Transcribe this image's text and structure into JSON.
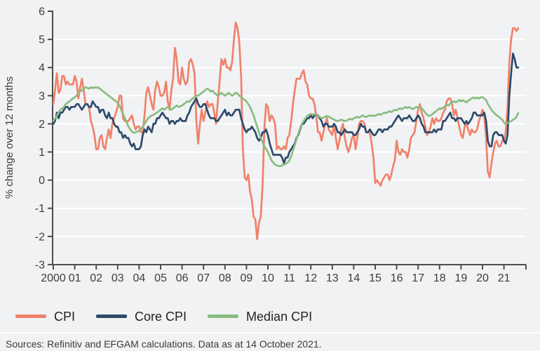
{
  "colors": {
    "background": "#F1F2F4",
    "gridline": "#FFFFFF",
    "axis": "#4D4D4D",
    "text": "#3C3C3C",
    "legend_text": "#222222",
    "source_text": "#3A3A3A",
    "cpi": "#F0826A",
    "core_cpi": "#2E4B6B",
    "median_cpi": "#89BD80"
  },
  "footer": {
    "sources": "Sources: Refinitiv and EFGAM calculations. Data as at 14 October 2021."
  },
  "chart_data": {
    "type": "line",
    "title": "",
    "xlabel": "",
    "ylabel": "% change over 12 months",
    "ylim": [
      -3,
      6
    ],
    "ytick_step": 1,
    "grid": "horizontal",
    "legend_position": "bottom-left",
    "x_frequency": "monthly",
    "x_first": "2000-01",
    "x_last": "2021-09",
    "x_tick_labels": [
      "2000",
      "01",
      "02",
      "03",
      "04",
      "05",
      "06",
      "07",
      "08",
      "09",
      "10",
      "11",
      "12",
      "13",
      "14",
      "15",
      "16",
      "17",
      "18",
      "19",
      "20",
      "21"
    ],
    "series": [
      {
        "id": "cpi",
        "name": "CPI",
        "color": "#F0826A",
        "values": [
          2.7,
          3.2,
          3.8,
          3.1,
          3.2,
          3.7,
          3.7,
          3.4,
          3.5,
          3.4,
          3.4,
          3.4,
          3.7,
          3.5,
          2.9,
          3.3,
          3.6,
          3.2,
          2.7,
          2.7,
          2.6,
          2.1,
          1.9,
          1.6,
          1.1,
          1.1,
          1.5,
          1.6,
          1.2,
          1.1,
          1.5,
          1.8,
          1.5,
          2.0,
          2.2,
          2.4,
          2.6,
          3.0,
          3.0,
          2.2,
          2.1,
          2.1,
          2.1,
          2.2,
          2.3,
          2.0,
          1.8,
          1.9,
          1.9,
          1.7,
          1.7,
          2.3,
          3.1,
          3.3,
          3.0,
          2.7,
          2.5,
          3.2,
          3.5,
          3.3,
          3.0,
          3.0,
          3.1,
          3.5,
          2.8,
          2.5,
          3.2,
          3.6,
          4.7,
          4.3,
          3.5,
          3.4,
          4.0,
          3.6,
          3.4,
          3.5,
          4.2,
          4.3,
          4.1,
          3.8,
          2.1,
          1.3,
          2.0,
          2.5,
          2.1,
          2.4,
          2.8,
          2.6,
          2.7,
          2.7,
          2.4,
          2.0,
          2.8,
          3.5,
          4.3,
          4.1,
          4.3,
          4.0,
          4.0,
          3.9,
          4.2,
          5.0,
          5.6,
          5.4,
          4.9,
          3.7,
          1.1,
          0.1,
          0.0,
          0.2,
          -0.4,
          -0.7,
          -1.3,
          -1.4,
          -2.1,
          -1.5,
          -1.3,
          -0.2,
          1.8,
          2.7,
          2.6,
          2.1,
          2.3,
          2.2,
          2.0,
          1.1,
          1.2,
          1.1,
          1.1,
          1.2,
          1.1,
          1.5,
          1.6,
          2.1,
          2.7,
          3.2,
          3.6,
          3.6,
          3.6,
          3.8,
          3.9,
          3.5,
          3.4,
          3.0,
          2.9,
          2.9,
          2.7,
          2.3,
          1.7,
          1.7,
          1.4,
          1.7,
          2.0,
          2.2,
          1.8,
          1.7,
          1.6,
          2.0,
          1.5,
          1.1,
          1.4,
          1.8,
          2.0,
          1.5,
          1.2,
          1.0,
          1.2,
          1.5,
          1.6,
          1.1,
          1.5,
          2.0,
          2.1,
          2.1,
          2.0,
          1.7,
          1.7,
          1.7,
          1.3,
          0.8,
          -0.1,
          0.0,
          -0.1,
          -0.2,
          0.0,
          0.1,
          0.2,
          0.2,
          0.0,
          0.2,
          0.5,
          0.7,
          1.4,
          1.0,
          0.9,
          1.1,
          1.0,
          1.0,
          0.8,
          1.1,
          1.5,
          1.6,
          1.7,
          2.1,
          2.5,
          2.7,
          2.4,
          2.2,
          1.9,
          1.6,
          1.7,
          1.9,
          2.2,
          2.0,
          2.2,
          2.1,
          2.1,
          2.2,
          2.4,
          2.5,
          2.8,
          2.9,
          2.9,
          2.7,
          2.3,
          2.5,
          2.2,
          1.9,
          1.6,
          1.5,
          1.9,
          2.0,
          1.8,
          1.6,
          1.8,
          1.7,
          1.7,
          1.8,
          2.1,
          2.3,
          2.5,
          2.3,
          1.5,
          0.3,
          0.1,
          0.6,
          1.0,
          1.3,
          1.4,
          1.2,
          1.2,
          1.4,
          1.4,
          1.7,
          2.6,
          4.2,
          5.0,
          5.4,
          5.4,
          5.3,
          5.4
        ]
      },
      {
        "id": "core-cpi",
        "name": "Core CPI",
        "color": "#2E4B6B",
        "values": [
          2.0,
          2.1,
          2.4,
          2.2,
          2.4,
          2.4,
          2.5,
          2.6,
          2.6,
          2.5,
          2.6,
          2.6,
          2.6,
          2.7,
          2.7,
          2.6,
          2.5,
          2.6,
          2.7,
          2.7,
          2.6,
          2.6,
          2.8,
          2.7,
          2.6,
          2.6,
          2.4,
          2.5,
          2.5,
          2.3,
          2.2,
          2.4,
          2.2,
          2.2,
          2.0,
          1.9,
          1.9,
          1.7,
          1.7,
          1.5,
          1.6,
          1.5,
          1.5,
          1.3,
          1.2,
          1.3,
          1.1,
          1.1,
          1.1,
          1.2,
          1.6,
          1.8,
          1.7,
          1.9,
          1.8,
          1.7,
          2.0,
          2.0,
          2.2,
          2.2,
          2.3,
          2.4,
          2.3,
          2.2,
          2.2,
          2.0,
          2.1,
          2.1,
          2.0,
          2.1,
          2.1,
          2.2,
          2.1,
          2.1,
          2.1,
          2.3,
          2.4,
          2.6,
          2.7,
          2.8,
          2.9,
          2.7,
          2.6,
          2.6,
          2.7,
          2.7,
          2.5,
          2.3,
          2.2,
          2.2,
          2.2,
          2.1,
          2.1,
          2.2,
          2.3,
          2.4,
          2.5,
          2.3,
          2.4,
          2.3,
          2.3,
          2.4,
          2.5,
          2.5,
          2.5,
          2.2,
          2.0,
          1.8,
          1.7,
          1.8,
          1.8,
          1.9,
          1.8,
          1.7,
          1.5,
          1.4,
          1.5,
          1.7,
          1.7,
          1.8,
          1.6,
          1.3,
          1.1,
          0.9,
          0.9,
          0.9,
          0.9,
          0.9,
          0.8,
          0.6,
          0.8,
          0.8,
          1.0,
          1.1,
          1.2,
          1.3,
          1.5,
          1.6,
          1.8,
          2.0,
          2.0,
          2.1,
          2.2,
          2.2,
          2.3,
          2.2,
          2.3,
          2.3,
          2.3,
          2.2,
          2.1,
          1.9,
          2.0,
          2.0,
          1.9,
          1.9,
          1.9,
          2.0,
          1.9,
          1.7,
          1.7,
          1.6,
          1.7,
          1.8,
          1.7,
          1.7,
          1.7,
          1.7,
          1.6,
          1.6,
          1.7,
          1.8,
          2.0,
          1.9,
          1.9,
          1.7,
          1.7,
          1.8,
          1.7,
          1.6,
          1.6,
          1.7,
          1.8,
          1.8,
          1.7,
          1.8,
          1.8,
          1.8,
          1.9,
          1.9,
          2.0,
          2.1,
          2.2,
          2.3,
          2.2,
          2.1,
          2.2,
          2.2,
          2.2,
          2.3,
          2.2,
          2.1,
          2.1,
          2.2,
          2.3,
          2.2,
          2.0,
          1.9,
          1.7,
          1.7,
          1.7,
          1.7,
          1.7,
          1.8,
          1.7,
          1.8,
          1.8,
          1.8,
          2.1,
          2.1,
          2.2,
          2.3,
          2.4,
          2.2,
          2.2,
          2.1,
          2.2,
          2.2,
          2.2,
          2.1,
          2.0,
          2.1,
          2.0,
          2.1,
          2.2,
          2.4,
          2.4,
          2.3,
          2.3,
          2.3,
          2.3,
          2.4,
          2.1,
          1.4,
          1.2,
          1.2,
          1.6,
          1.7,
          1.7,
          1.6,
          1.6,
          1.6,
          1.4,
          1.3,
          1.6,
          3.0,
          3.8,
          4.5,
          4.3,
          4.0,
          4.0
        ]
      },
      {
        "id": "median-cpi",
        "name": "Median CPI",
        "color": "#89BD80",
        "values": [
          2.1,
          2.2,
          2.3,
          2.4,
          2.5,
          2.55,
          2.6,
          2.7,
          2.75,
          2.8,
          2.85,
          2.9,
          2.95,
          3.0,
          3.1,
          3.15,
          3.2,
          3.25,
          3.3,
          3.28,
          3.25,
          3.3,
          3.27,
          3.3,
          3.28,
          3.3,
          3.25,
          3.2,
          3.15,
          3.1,
          3.05,
          3.0,
          2.95,
          2.9,
          2.85,
          2.8,
          2.75,
          2.65,
          2.5,
          2.35,
          2.2,
          2.05,
          1.9,
          1.8,
          1.72,
          1.68,
          1.7,
          1.72,
          1.75,
          1.82,
          1.9,
          2.0,
          2.1,
          2.2,
          2.25,
          2.3,
          2.32,
          2.36,
          2.4,
          2.45,
          2.5,
          2.55,
          2.5,
          2.55,
          2.6,
          2.55,
          2.5,
          2.55,
          2.6,
          2.65,
          2.6,
          2.62,
          2.65,
          2.7,
          2.75,
          2.8,
          2.78,
          2.85,
          2.9,
          2.95,
          3.0,
          3.0,
          3.05,
          3.1,
          3.15,
          3.2,
          3.25,
          3.22,
          3.15,
          3.18,
          3.1,
          3.05,
          3.0,
          3.05,
          3.1,
          3.05,
          3.0,
          3.05,
          3.1,
          3.05,
          3.0,
          3.05,
          3.1,
          3.08,
          3.0,
          2.95,
          2.9,
          2.85,
          2.8,
          2.7,
          2.6,
          2.45,
          2.3,
          2.1,
          1.9,
          1.7,
          1.5,
          1.35,
          1.2,
          1.1,
          1.0,
          0.85,
          0.7,
          0.62,
          0.55,
          0.52,
          0.5,
          0.5,
          0.52,
          0.55,
          0.58,
          0.62,
          0.7,
          0.85,
          1.05,
          1.25,
          1.45,
          1.65,
          1.85,
          2.0,
          2.1,
          2.2,
          2.28,
          2.32,
          2.35,
          2.32,
          2.35,
          2.3,
          2.28,
          2.25,
          2.2,
          2.22,
          2.25,
          2.28,
          2.25,
          2.22,
          2.18,
          2.15,
          2.12,
          2.1,
          2.12,
          2.15,
          2.12,
          2.1,
          2.12,
          2.15,
          2.18,
          2.15,
          2.2,
          2.22,
          2.25,
          2.22,
          2.26,
          2.3,
          2.26,
          2.24,
          2.28,
          2.3,
          2.28,
          2.3,
          2.28,
          2.32,
          2.35,
          2.32,
          2.36,
          2.4,
          2.38,
          2.42,
          2.45,
          2.42,
          2.46,
          2.5,
          2.48,
          2.52,
          2.55,
          2.52,
          2.56,
          2.6,
          2.56,
          2.6,
          2.55,
          2.52,
          2.56,
          2.6,
          2.58,
          2.6,
          2.55,
          2.48,
          2.4,
          2.32,
          2.28,
          2.3,
          2.35,
          2.4,
          2.45,
          2.5,
          2.55,
          2.52,
          2.58,
          2.62,
          2.68,
          2.65,
          2.72,
          2.76,
          2.8,
          2.76,
          2.8,
          2.85,
          2.8,
          2.84,
          2.8,
          2.76,
          2.82,
          2.86,
          2.9,
          2.94,
          2.9,
          2.94,
          2.9,
          2.94,
          2.95,
          2.9,
          2.85,
          2.7,
          2.6,
          2.5,
          2.42,
          2.36,
          2.3,
          2.26,
          2.2,
          2.15,
          2.05,
          2.0,
          2.03,
          2.06,
          2.1,
          2.14,
          2.18,
          2.25,
          2.38
        ]
      }
    ]
  }
}
